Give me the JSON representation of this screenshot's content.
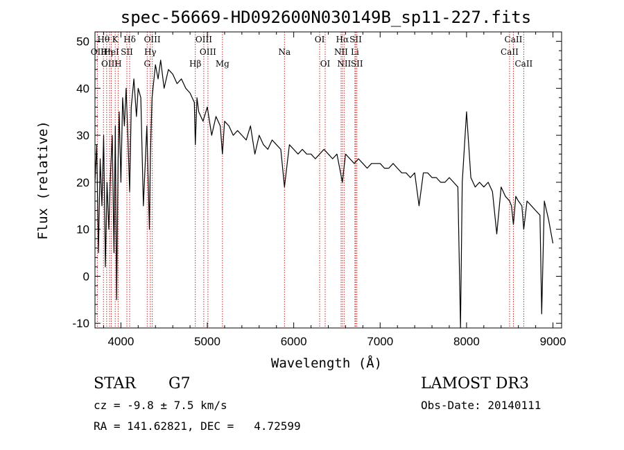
{
  "chart_data": {
    "type": "line",
    "title": "spec-56669-HD092600N030149B_sp11-227.fits",
    "xlabel": "Wavelength (Å)",
    "ylabel": "Flux (relative)",
    "xlim": [
      3700,
      9100
    ],
    "ylim": [
      -11,
      52
    ],
    "xticks": [
      4000,
      5000,
      6000,
      7000,
      8000,
      9000
    ],
    "yticks": [
      -10,
      0,
      10,
      20,
      30,
      40,
      50
    ],
    "series": [
      {
        "name": "spectrum",
        "x": [
          3700,
          3720,
          3740,
          3760,
          3780,
          3800,
          3820,
          3840,
          3860,
          3880,
          3900,
          3920,
          3935,
          3950,
          3968,
          3980,
          4000,
          4020,
          4040,
          4060,
          4080,
          4101,
          4120,
          4150,
          4180,
          4200,
          4230,
          4260,
          4300,
          4330,
          4340,
          4360,
          4400,
          4430,
          4460,
          4500,
          4550,
          4600,
          4650,
          4700,
          4750,
          4800,
          4850,
          4861,
          4880,
          4900,
          4950,
          5000,
          5050,
          5100,
          5150,
          5175,
          5200,
          5250,
          5300,
          5350,
          5400,
          5450,
          5500,
          5550,
          5600,
          5650,
          5700,
          5750,
          5800,
          5850,
          5893,
          5950,
          6000,
          6050,
          6100,
          6150,
          6200,
          6250,
          6300,
          6350,
          6400,
          6450,
          6500,
          6563,
          6600,
          6650,
          6700,
          6750,
          6800,
          6850,
          6900,
          6950,
          7000,
          7050,
          7100,
          7150,
          7200,
          7250,
          7300,
          7350,
          7400,
          7450,
          7500,
          7550,
          7600,
          7650,
          7700,
          7750,
          7800,
          7850,
          7900,
          7930,
          7950,
          8000,
          8050,
          8100,
          8150,
          8200,
          8250,
          8300,
          8350,
          8400,
          8450,
          8498,
          8520,
          8542,
          8570,
          8600,
          8640,
          8662,
          8700,
          8750,
          8800,
          8850,
          8870,
          8900,
          8950,
          9000
        ],
        "y": [
          20,
          28,
          5,
          25,
          15,
          30,
          2,
          20,
          10,
          22,
          30,
          5,
          32,
          -5,
          25,
          35,
          20,
          38,
          32,
          40,
          30,
          18,
          36,
          42,
          34,
          40,
          38,
          15,
          32,
          10,
          25,
          38,
          45,
          42,
          46,
          40,
          44,
          43,
          41,
          42,
          40,
          39,
          37,
          28,
          38,
          35,
          33,
          36,
          30,
          34,
          32,
          26,
          33,
          32,
          30,
          31,
          30,
          29,
          32,
          26,
          30,
          28,
          27,
          29,
          28,
          27,
          19,
          28,
          27,
          26,
          27,
          26,
          26,
          25,
          26,
          27,
          26,
          25,
          26,
          20,
          26,
          25,
          24,
          25,
          24,
          23,
          24,
          24,
          24,
          23,
          23,
          24,
          23,
          22,
          22,
          21,
          22,
          15,
          22,
          22,
          21,
          21,
          20,
          20,
          21,
          20,
          19,
          -11,
          20,
          35,
          21,
          19,
          20,
          19,
          20,
          18,
          9,
          19,
          17,
          16,
          15,
          11,
          17,
          16,
          15,
          10,
          16,
          15,
          14,
          13,
          -8,
          16,
          12,
          7
        ]
      }
    ],
    "lines_top": [
      {
        "name": "Hθ",
        "x": 3798
      },
      {
        "name": "K",
        "x": 3934
      },
      {
        "name": "Hδ",
        "x": 4101
      },
      {
        "name": "OIII",
        "x": 4363
      },
      {
        "name": "OIII",
        "x": 4959
      },
      {
        "name": "OI",
        "x": 6300
      },
      {
        "name": "Hα",
        "x": 6563
      },
      {
        "name": "SII",
        "x": 6717
      },
      {
        "name": "CaII",
        "x": 8542
      }
    ],
    "lines_mid": [
      {
        "name": "OII",
        "x": 3727
      },
      {
        "name": "Hη",
        "x": 3835
      },
      {
        "name": "HeI",
        "x": 3889
      },
      {
        "name": "SII",
        "x": 4069
      },
      {
        "name": "Hγ",
        "x": 4340
      },
      {
        "name": "OIII",
        "x": 5007
      },
      {
        "name": "Na",
        "x": 5893
      },
      {
        "name": "NII",
        "x": 6548
      },
      {
        "name": "Li",
        "x": 6708
      },
      {
        "name": "CaII",
        "x": 8498
      }
    ],
    "lines_low": [
      {
        "name": "OIII",
        "x": 3869
      },
      {
        "name": "H",
        "x": 3968
      },
      {
        "name": "G",
        "x": 4304
      },
      {
        "name": "Hβ",
        "x": 4861
      },
      {
        "name": "Mg",
        "x": 5175
      },
      {
        "name": "OI",
        "x": 6364
      },
      {
        "name": "NII",
        "x": 6583
      },
      {
        "name": "SII",
        "x": 6731
      },
      {
        "name": "CaII",
        "x": 8662
      }
    ]
  },
  "info": {
    "object_type": "STAR",
    "subclass": "G7",
    "survey": "LAMOST DR3",
    "cz": "cz = -9.8 ± 7.5 km/s",
    "obs_date": "Obs-Date: 20140111",
    "coords": "RA = 141.62821, DEC =   4.72599"
  },
  "colors": {
    "spectrum": "#000000",
    "line_marker": "#cc2222"
  }
}
